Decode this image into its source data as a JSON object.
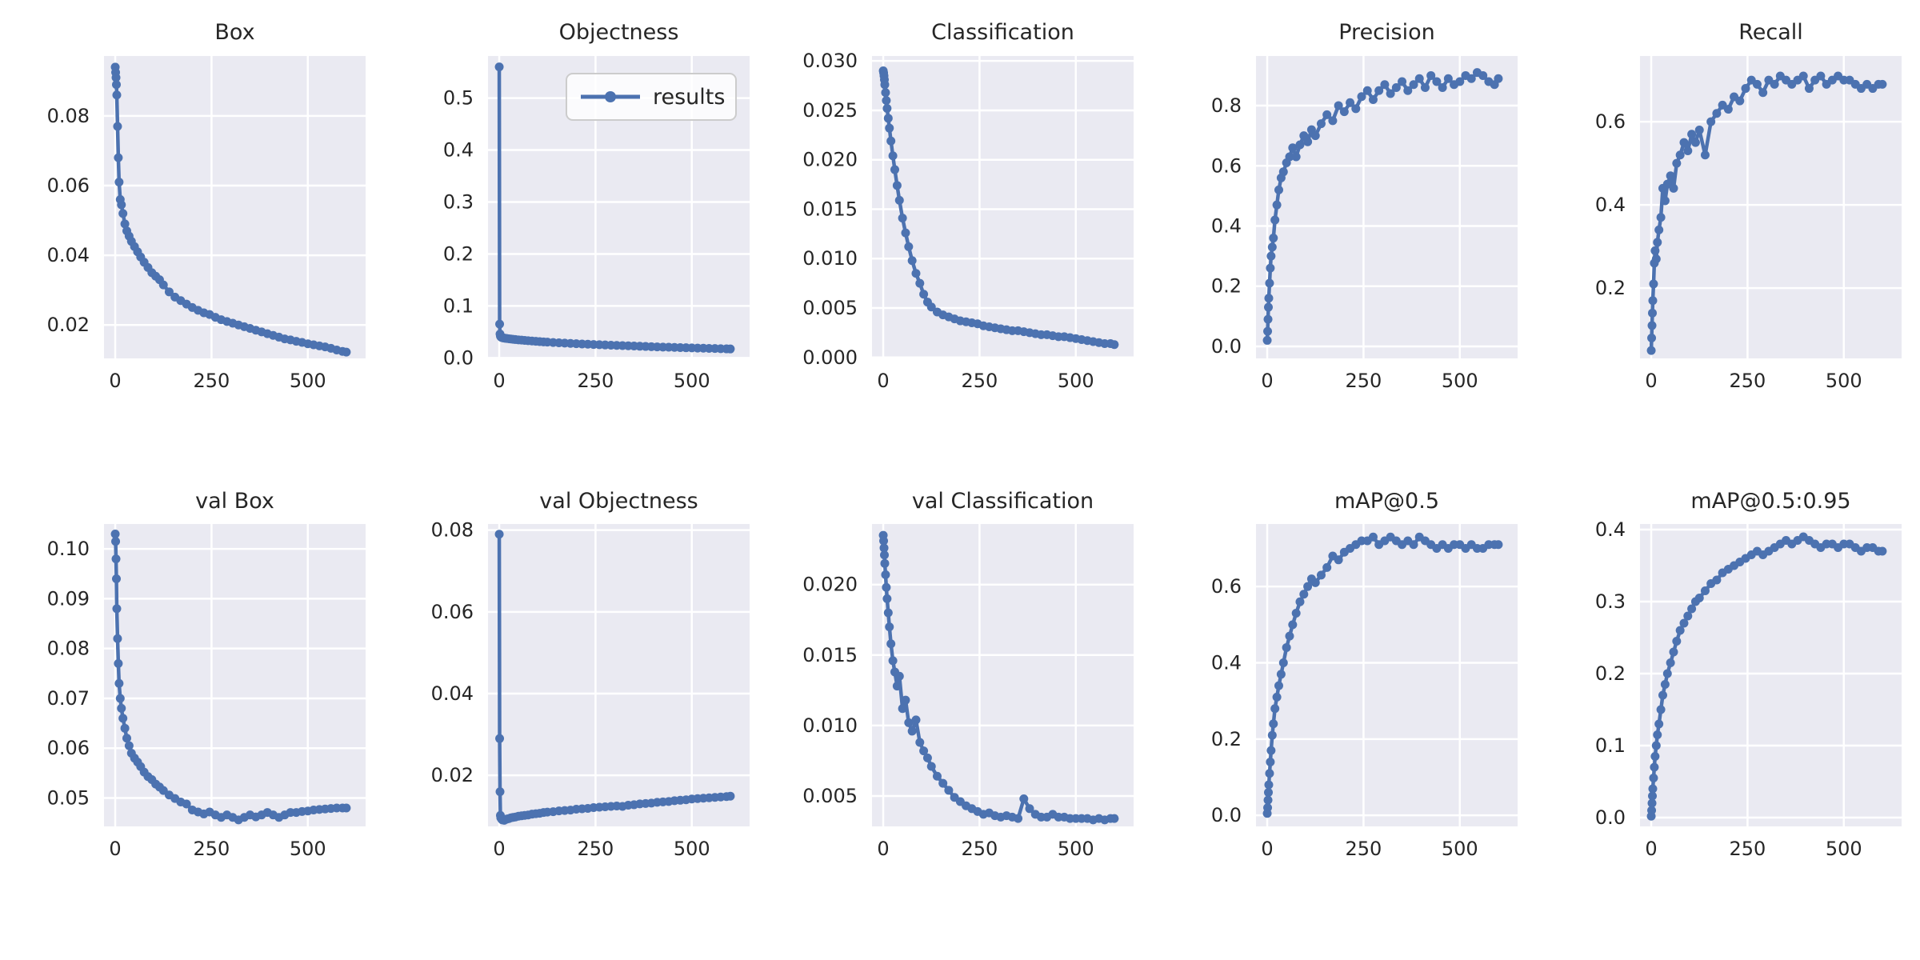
{
  "figure": {
    "legend_label": "results",
    "colors": {
      "line": "#4c72b0",
      "axes_bg": "#eaeaf2",
      "grid": "#ffffff",
      "text": "#262626",
      "legend_edge": "#cccccc",
      "legend_bg": "rgba(255,255,255,0.8)",
      "figure_bg": "#ffffff"
    }
  },
  "x_epochs": [
    0,
    1,
    2,
    3,
    4,
    6,
    8,
    10,
    13,
    16,
    20,
    25,
    30,
    36,
    42,
    50,
    58,
    66,
    75,
    85,
    95,
    105,
    115,
    125,
    140,
    155,
    170,
    185,
    200,
    215,
    230,
    245,
    260,
    275,
    290,
    305,
    320,
    335,
    350,
    365,
    380,
    395,
    410,
    425,
    440,
    455,
    470,
    485,
    500,
    515,
    530,
    545,
    560,
    575,
    590,
    600
  ],
  "chart_data": [
    {
      "type": "line",
      "title": "Box",
      "row": 0,
      "col": 0,
      "grid": true,
      "xticks": [
        0,
        250,
        500
      ],
      "xtick_labels": [
        "0",
        "250",
        "500"
      ],
      "xlim": [
        -29.2,
        650
      ],
      "yticks": [
        0.02,
        0.04,
        0.06,
        0.08
      ],
      "ytick_labels": [
        "0.02",
        "0.04",
        "0.06",
        "0.08"
      ],
      "ylim": [
        0.0104,
        0.0972
      ],
      "y": [
        0.094,
        0.0925,
        0.091,
        0.089,
        0.086,
        0.077,
        0.068,
        0.061,
        0.056,
        0.0545,
        0.052,
        0.049,
        0.047,
        0.0455,
        0.044,
        0.0425,
        0.041,
        0.0395,
        0.038,
        0.0365,
        0.035,
        0.034,
        0.033,
        0.0315,
        0.0295,
        0.028,
        0.027,
        0.026,
        0.025,
        0.0242,
        0.0235,
        0.023,
        0.0222,
        0.0215,
        0.021,
        0.0205,
        0.02,
        0.0195,
        0.019,
        0.0185,
        0.018,
        0.0175,
        0.017,
        0.0165,
        0.016,
        0.0157,
        0.0153,
        0.015,
        0.0146,
        0.0143,
        0.014,
        0.0137,
        0.0133,
        0.0128,
        0.0124,
        0.0122
      ]
    },
    {
      "type": "line",
      "title": "Objectness",
      "row": 0,
      "col": 1,
      "grid": true,
      "legend": true,
      "legend_position": "upper right",
      "xticks": [
        0,
        250,
        500
      ],
      "xtick_labels": [
        "0",
        "250",
        "500"
      ],
      "xlim": [
        -29.2,
        650
      ],
      "yticks": [
        0.0,
        0.1,
        0.2,
        0.3,
        0.4,
        0.5
      ],
      "ytick_labels": [
        "0.0",
        "0.1",
        "0.2",
        "0.3",
        "0.4",
        "0.5"
      ],
      "ylim": [
        -0.001,
        0.581
      ],
      "y": [
        0.56,
        0.065,
        0.046,
        0.042,
        0.0405,
        0.0395,
        0.039,
        0.0385,
        0.038,
        0.0377,
        0.0373,
        0.0368,
        0.0363,
        0.0358,
        0.0353,
        0.0347,
        0.0342,
        0.0337,
        0.0331,
        0.0325,
        0.0319,
        0.0313,
        0.0308,
        0.0303,
        0.0296,
        0.029,
        0.0284,
        0.0278,
        0.0273,
        0.0268,
        0.0263,
        0.0258,
        0.0253,
        0.0249,
        0.0244,
        0.024,
        0.0236,
        0.0232,
        0.0228,
        0.0224,
        0.022,
        0.0216,
        0.0212,
        0.0208,
        0.0205,
        0.0202,
        0.0198,
        0.0195,
        0.0192,
        0.0189,
        0.0186,
        0.0183,
        0.018,
        0.0177,
        0.0174,
        0.0172
      ]
    },
    {
      "type": "line",
      "title": "Classification",
      "row": 0,
      "col": 2,
      "grid": true,
      "xticks": [
        0,
        250,
        500
      ],
      "xtick_labels": [
        "0",
        "250",
        "500"
      ],
      "xlim": [
        -29.2,
        650
      ],
      "yticks": [
        0.0,
        0.005,
        0.01,
        0.015,
        0.02,
        0.025,
        0.03
      ],
      "ytick_labels": [
        "0.000",
        "0.005",
        "0.010",
        "0.015",
        "0.020",
        "0.025",
        "0.030"
      ],
      "ylim": [
        -0.0001,
        0.0305
      ],
      "y": [
        0.029,
        0.0288,
        0.0285,
        0.0281,
        0.0276,
        0.0268,
        0.026,
        0.0252,
        0.0242,
        0.0232,
        0.0219,
        0.0204,
        0.019,
        0.0174,
        0.0159,
        0.0141,
        0.0126,
        0.0112,
        0.0098,
        0.0085,
        0.0075,
        0.0064,
        0.0056,
        0.0051,
        0.0046,
        0.0043,
        0.0041,
        0.0039,
        0.0037,
        0.0036,
        0.0035,
        0.0034,
        0.0032,
        0.0031,
        0.003,
        0.0029,
        0.0028,
        0.0027,
        0.0027,
        0.0026,
        0.0025,
        0.0024,
        0.0023,
        0.0023,
        0.0022,
        0.0021,
        0.0021,
        0.002,
        0.0019,
        0.0018,
        0.0017,
        0.0016,
        0.0015,
        0.0014,
        0.0014,
        0.0013
      ]
    },
    {
      "type": "line",
      "title": "Precision",
      "row": 0,
      "col": 3,
      "grid": true,
      "xticks": [
        0,
        250,
        500
      ],
      "xtick_labels": [
        "0",
        "250",
        "500"
      ],
      "xlim": [
        -29.2,
        650
      ],
      "yticks": [
        0.0,
        0.2,
        0.4,
        0.6,
        0.8
      ],
      "ytick_labels": [
        "0.0",
        "0.2",
        "0.4",
        "0.6",
        "0.8"
      ],
      "ylim": [
        -0.04,
        0.965
      ],
      "y": [
        0.02,
        0.05,
        0.09,
        0.13,
        0.16,
        0.21,
        0.26,
        0.3,
        0.33,
        0.36,
        0.42,
        0.47,
        0.52,
        0.56,
        0.58,
        0.61,
        0.63,
        0.66,
        0.63,
        0.67,
        0.7,
        0.68,
        0.72,
        0.7,
        0.74,
        0.77,
        0.75,
        0.8,
        0.78,
        0.81,
        0.79,
        0.83,
        0.85,
        0.82,
        0.85,
        0.87,
        0.84,
        0.86,
        0.88,
        0.85,
        0.87,
        0.89,
        0.86,
        0.9,
        0.88,
        0.86,
        0.89,
        0.87,
        0.88,
        0.9,
        0.89,
        0.91,
        0.9,
        0.88,
        0.87,
        0.89
      ]
    },
    {
      "type": "line",
      "title": "Recall",
      "row": 0,
      "col": 4,
      "grid": true,
      "xticks": [
        0,
        250,
        500
      ],
      "xtick_labels": [
        "0",
        "250",
        "500"
      ],
      "xlim": [
        -29.2,
        650
      ],
      "yticks": [
        0.2,
        0.4,
        0.6
      ],
      "ytick_labels": [
        "0.2",
        "0.4",
        "0.6"
      ],
      "ylim": [
        0.031,
        0.758
      ],
      "y": [
        0.05,
        0.08,
        0.11,
        0.14,
        0.17,
        0.21,
        0.26,
        0.29,
        0.27,
        0.31,
        0.34,
        0.37,
        0.44,
        0.41,
        0.45,
        0.47,
        0.44,
        0.5,
        0.52,
        0.55,
        0.53,
        0.57,
        0.55,
        0.58,
        0.52,
        0.6,
        0.62,
        0.64,
        0.63,
        0.66,
        0.65,
        0.68,
        0.7,
        0.69,
        0.67,
        0.7,
        0.69,
        0.71,
        0.7,
        0.69,
        0.7,
        0.71,
        0.68,
        0.7,
        0.71,
        0.69,
        0.7,
        0.71,
        0.7,
        0.7,
        0.69,
        0.68,
        0.69,
        0.68,
        0.69,
        0.69
      ]
    },
    {
      "type": "line",
      "title": "val Box",
      "row": 1,
      "col": 0,
      "grid": true,
      "xticks": [
        0,
        250,
        500
      ],
      "xtick_labels": [
        "0",
        "250",
        "500"
      ],
      "xlim": [
        -29.2,
        650
      ],
      "yticks": [
        0.05,
        0.06,
        0.07,
        0.08,
        0.09,
        0.1
      ],
      "ytick_labels": [
        "0.05",
        "0.06",
        "0.07",
        "0.08",
        "0.09",
        "0.10"
      ],
      "ylim": [
        0.0443,
        0.105
      ],
      "y": [
        0.103,
        0.1015,
        0.098,
        0.094,
        0.088,
        0.082,
        0.077,
        0.073,
        0.07,
        0.068,
        0.066,
        0.064,
        0.062,
        0.0605,
        0.059,
        0.058,
        0.0572,
        0.0563,
        0.0552,
        0.0543,
        0.0537,
        0.0528,
        0.0522,
        0.0515,
        0.0506,
        0.0499,
        0.0492,
        0.0488,
        0.0476,
        0.0472,
        0.0468,
        0.0472,
        0.0466,
        0.0461,
        0.0466,
        0.0461,
        0.0456,
        0.0461,
        0.0466,
        0.0462,
        0.0466,
        0.0471,
        0.0466,
        0.0461,
        0.0466,
        0.0471,
        0.0471,
        0.0473,
        0.0474,
        0.0476,
        0.0477,
        0.0478,
        0.0479,
        0.048,
        0.048,
        0.048
      ]
    },
    {
      "type": "line",
      "title": "val Objectness",
      "row": 1,
      "col": 1,
      "grid": true,
      "xticks": [
        0,
        250,
        500
      ],
      "xtick_labels": [
        "0",
        "250",
        "500"
      ],
      "xlim": [
        -29.2,
        650
      ],
      "yticks": [
        0.02,
        0.04,
        0.06,
        0.08
      ],
      "ytick_labels": [
        "0.02",
        "0.04",
        "0.06",
        "0.08"
      ],
      "ylim": [
        0.0075,
        0.0815
      ],
      "y": [
        0.079,
        0.029,
        0.016,
        0.0102,
        0.0096,
        0.0093,
        0.0091,
        0.0092,
        0.009,
        0.0092,
        0.0093,
        0.0094,
        0.0096,
        0.0097,
        0.0098,
        0.01,
        0.0101,
        0.0102,
        0.0103,
        0.0105,
        0.0106,
        0.0107,
        0.0109,
        0.011,
        0.0111,
        0.0113,
        0.0114,
        0.0115,
        0.0117,
        0.0118,
        0.0119,
        0.0121,
        0.0122,
        0.0123,
        0.0124,
        0.0125,
        0.0124,
        0.0127,
        0.0128,
        0.013,
        0.0131,
        0.0132,
        0.0134,
        0.0135,
        0.0136,
        0.0138,
        0.0139,
        0.014,
        0.0142,
        0.0143,
        0.0144,
        0.0145,
        0.0146,
        0.0147,
        0.0148,
        0.0149
      ]
    },
    {
      "type": "line",
      "title": "val Classification",
      "row": 1,
      "col": 2,
      "grid": true,
      "xticks": [
        0,
        250,
        500
      ],
      "xtick_labels": [
        "0",
        "250",
        "500"
      ],
      "xlim": [
        -29.2,
        650
      ],
      "yticks": [
        0.005,
        0.01,
        0.015,
        0.02
      ],
      "ytick_labels": [
        "0.005",
        "0.010",
        "0.015",
        "0.020"
      ],
      "ylim": [
        0.00284,
        0.0243
      ],
      "y": [
        0.0235,
        0.0231,
        0.0226,
        0.0221,
        0.0215,
        0.0207,
        0.0198,
        0.019,
        0.018,
        0.017,
        0.0158,
        0.0146,
        0.0138,
        0.0128,
        0.0135,
        0.0112,
        0.0118,
        0.0102,
        0.0096,
        0.0104,
        0.0088,
        0.0082,
        0.0077,
        0.0071,
        0.0064,
        0.0059,
        0.0054,
        0.0049,
        0.0046,
        0.0043,
        0.0041,
        0.0039,
        0.0037,
        0.0038,
        0.0036,
        0.0035,
        0.0036,
        0.0035,
        0.0034,
        0.0048,
        0.0041,
        0.0037,
        0.0035,
        0.0035,
        0.0037,
        0.0035,
        0.0035,
        0.0034,
        0.0034,
        0.0034,
        0.0034,
        0.0033,
        0.0034,
        0.0033,
        0.0034,
        0.0034
      ]
    },
    {
      "type": "line",
      "title": "mAP@0.5",
      "row": 1,
      "col": 3,
      "grid": true,
      "xticks": [
        0,
        250,
        500
      ],
      "xtick_labels": [
        "0",
        "250",
        "500"
      ],
      "xlim": [
        -29.2,
        650
      ],
      "yticks": [
        0.0,
        0.2,
        0.4,
        0.6
      ],
      "ytick_labels": [
        "0.0",
        "0.2",
        "0.4",
        "0.6"
      ],
      "ylim": [
        -0.029,
        0.764
      ],
      "y": [
        0.005,
        0.02,
        0.04,
        0.06,
        0.08,
        0.11,
        0.14,
        0.17,
        0.21,
        0.24,
        0.28,
        0.31,
        0.34,
        0.37,
        0.4,
        0.44,
        0.47,
        0.5,
        0.53,
        0.56,
        0.58,
        0.6,
        0.62,
        0.61,
        0.63,
        0.65,
        0.68,
        0.67,
        0.69,
        0.7,
        0.71,
        0.72,
        0.72,
        0.73,
        0.71,
        0.72,
        0.73,
        0.72,
        0.71,
        0.72,
        0.71,
        0.73,
        0.72,
        0.71,
        0.7,
        0.71,
        0.7,
        0.71,
        0.71,
        0.7,
        0.71,
        0.7,
        0.7,
        0.71,
        0.71,
        0.71
      ]
    },
    {
      "type": "line",
      "title": "mAP@0.5:0.95",
      "row": 1,
      "col": 4,
      "grid": true,
      "xticks": [
        0,
        250,
        500
      ],
      "xtick_labels": [
        "0",
        "250",
        "500"
      ],
      "xlim": [
        -29.2,
        650
      ],
      "yticks": [
        0.0,
        0.1,
        0.2,
        0.3,
        0.4
      ],
      "ytick_labels": [
        "0.0",
        "0.1",
        "0.2",
        "0.3",
        "0.4"
      ],
      "ylim": [
        -0.0122,
        0.4078
      ],
      "y": [
        0.002,
        0.01,
        0.02,
        0.03,
        0.04,
        0.055,
        0.07,
        0.085,
        0.1,
        0.115,
        0.13,
        0.15,
        0.17,
        0.185,
        0.2,
        0.215,
        0.23,
        0.245,
        0.26,
        0.27,
        0.28,
        0.29,
        0.3,
        0.305,
        0.315,
        0.325,
        0.33,
        0.34,
        0.345,
        0.35,
        0.355,
        0.36,
        0.365,
        0.37,
        0.365,
        0.37,
        0.375,
        0.38,
        0.385,
        0.38,
        0.385,
        0.39,
        0.385,
        0.38,
        0.375,
        0.38,
        0.38,
        0.375,
        0.38,
        0.38,
        0.375,
        0.37,
        0.375,
        0.375,
        0.37,
        0.37
      ]
    }
  ]
}
